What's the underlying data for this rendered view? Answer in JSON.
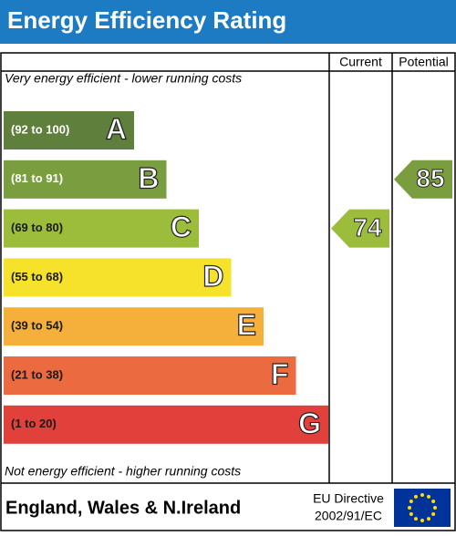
{
  "title": "Energy Efficiency Rating",
  "columns": [
    "Current",
    "Potential"
  ],
  "top_note": "Very energy efficient - lower running costs",
  "bottom_note": "Not energy efficient - higher running costs",
  "bands": [
    {
      "range": "(92 to 100)",
      "letter": "A",
      "color": "#5f7f3c",
      "text_color": "#ffffff"
    },
    {
      "range": "(81 to 91)",
      "letter": "B",
      "color": "#7a9e3f",
      "text_color": "#ffffff"
    },
    {
      "range": "(69 to 80)",
      "letter": "C",
      "color": "#9cbd3c",
      "text_color": "#1a1a1a"
    },
    {
      "range": "(55 to 68)",
      "letter": "D",
      "color": "#f6e12b",
      "text_color": "#1a1a1a"
    },
    {
      "range": "(39 to 54)",
      "letter": "E",
      "color": "#f4b03b",
      "text_color": "#1a1a1a"
    },
    {
      "range": "(21 to 38)",
      "letter": "F",
      "color": "#ec6a40",
      "text_color": "#1a1a1a"
    },
    {
      "range": "(1 to 20)",
      "letter": "G",
      "color": "#e2403b",
      "text_color": "#1a1a1a"
    }
  ],
  "current": {
    "value": 74,
    "band": "C"
  },
  "potential": {
    "value": 85,
    "band": "B"
  },
  "footer": {
    "region": "England, Wales & N.Ireland",
    "directive": [
      "EU Directive",
      "2002/91/EC"
    ]
  }
}
